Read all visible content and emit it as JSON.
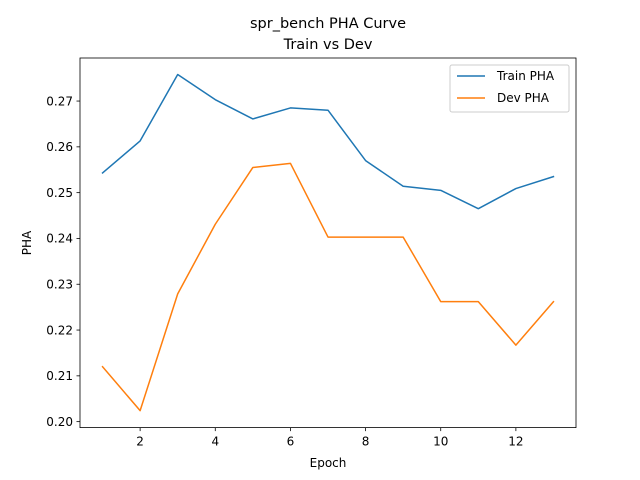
{
  "chart_data": {
    "type": "line",
    "title": "spr_bench PHA Curve",
    "subtitle": "Train vs Dev",
    "xlabel": "Epoch",
    "ylabel": "PHA",
    "x": [
      1,
      2,
      3,
      4,
      5,
      6,
      7,
      8,
      9,
      10,
      11,
      12,
      13
    ],
    "xlim": [
      0.4,
      13.6
    ],
    "ylim": [
      0.1987,
      0.2794
    ],
    "xticks": [
      2,
      4,
      6,
      8,
      10,
      12
    ],
    "yticks": [
      0.2,
      0.21,
      0.22,
      0.23,
      0.24,
      0.25,
      0.26,
      0.27
    ],
    "ytick_labels": [
      "0.20",
      "0.21",
      "0.22",
      "0.23",
      "0.24",
      "0.25",
      "0.26",
      "0.27"
    ],
    "grid": false,
    "legend_position": "top-right",
    "series": [
      {
        "name": "Train PHA",
        "color": "#1f77b4",
        "values": [
          0.2543,
          0.2613,
          0.2758,
          0.2703,
          0.2661,
          0.2685,
          0.268,
          0.257,
          0.2514,
          0.2505,
          0.2465,
          0.2509,
          0.2535
        ]
      },
      {
        "name": "Dev PHA",
        "color": "#ff7f0e",
        "values": [
          0.212,
          0.2024,
          0.2279,
          0.2431,
          0.2555,
          0.2564,
          0.2403,
          0.2403,
          0.2403,
          0.2262,
          0.2262,
          0.2167,
          0.2262
        ]
      }
    ]
  }
}
